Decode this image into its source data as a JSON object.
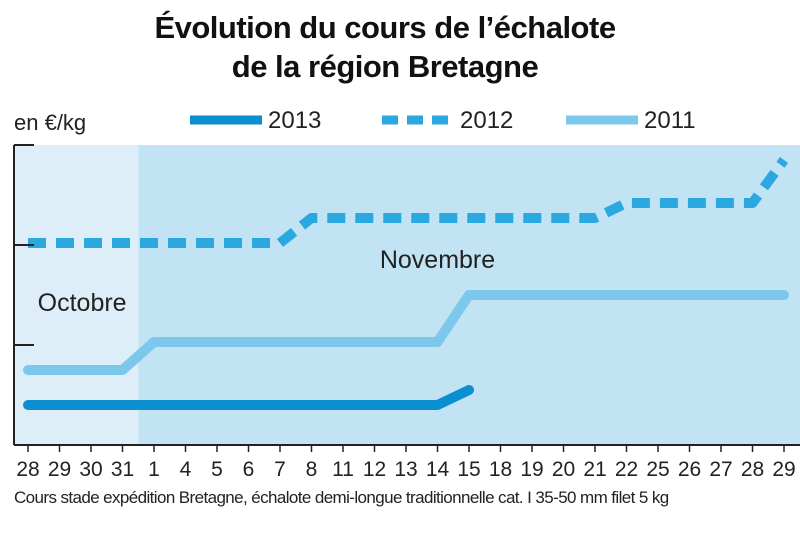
{
  "chart_data": {
    "type": "line",
    "title_line1": "Évolution du cours de l’échalote",
    "title_line2": "de la région Bretagne",
    "ylabel": "en €/kg",
    "yticks_labeled": false,
    "ylim": [
      0,
      3
    ],
    "categories": [
      "28",
      "29",
      "30",
      "31",
      "1",
      "4",
      "5",
      "6",
      "7",
      "8",
      "11",
      "12",
      "13",
      "14",
      "15",
      "18",
      "19",
      "20",
      "21",
      "22",
      "25",
      "26",
      "27",
      "28",
      "29"
    ],
    "month_labels": [
      {
        "text": "Octobre",
        "from_index": 0,
        "to_index": 3
      },
      {
        "text": "Novembre",
        "from_index": 4,
        "to_index": 24
      }
    ],
    "series": [
      {
        "name": "2013",
        "color": "#0c8fd0",
        "style": "solid",
        "values": [
          0.4,
          0.4,
          0.4,
          0.4,
          0.4,
          0.4,
          0.4,
          0.4,
          0.4,
          0.4,
          0.4,
          0.4,
          0.4,
          0.4,
          0.55,
          null,
          null,
          null,
          null,
          null,
          null,
          null,
          null,
          null,
          null
        ]
      },
      {
        "name": "2012",
        "color": "#2aa8df",
        "style": "dashed",
        "values": [
          2.02,
          2.02,
          2.02,
          2.02,
          2.02,
          2.02,
          2.02,
          2.02,
          2.02,
          2.27,
          2.27,
          2.27,
          2.27,
          2.27,
          2.27,
          2.27,
          2.27,
          2.27,
          2.27,
          2.42,
          2.42,
          2.42,
          2.42,
          2.42,
          2.85
        ]
      },
      {
        "name": "2011",
        "color": "#7cc8ec",
        "style": "solid",
        "values": [
          0.75,
          0.75,
          0.75,
          0.75,
          1.03,
          1.03,
          1.03,
          1.03,
          1.03,
          1.03,
          1.03,
          1.03,
          1.03,
          1.03,
          1.5,
          1.5,
          1.5,
          1.5,
          1.5,
          1.5,
          1.5,
          1.5,
          1.5,
          1.5,
          1.5
        ]
      }
    ],
    "legend_position": "top",
    "grid": false,
    "footnote": "Cours stade expédition Bretagne, échalote demi-longue traditionnelle cat. I 35-50 mm filet 5 kg"
  },
  "colors": {
    "plot_background_october": "#ddeef8",
    "plot_background_november": "#c2e3f4",
    "axis": "#222222"
  }
}
